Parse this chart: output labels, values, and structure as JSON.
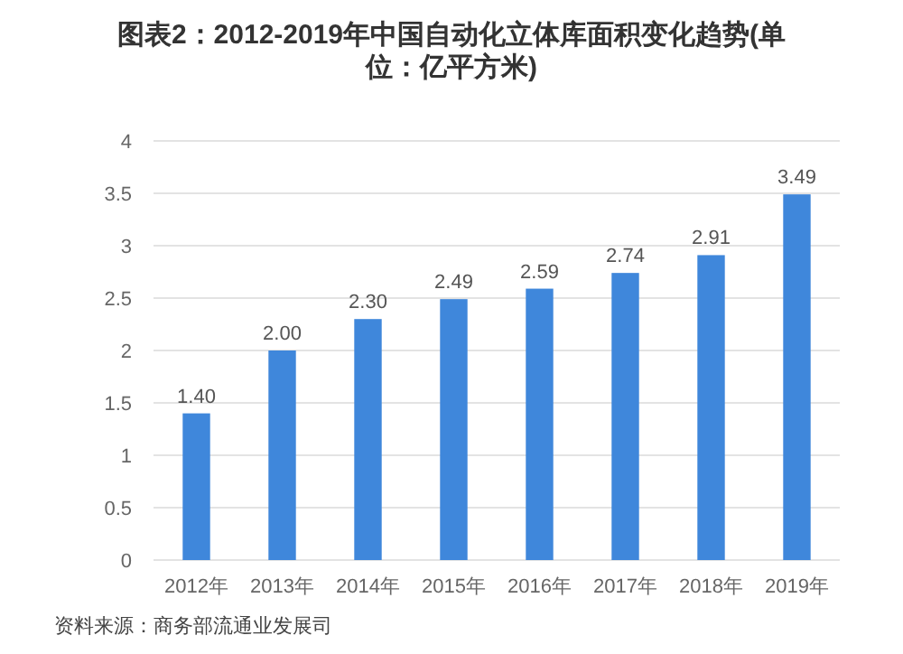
{
  "chart_data": {
    "type": "bar",
    "title": "图表2：2012-2019年中国自动化立体库面积变化趋势(单位：亿平方米)",
    "categories": [
      "2012年",
      "2013年",
      "2014年",
      "2015年",
      "2016年",
      "2017年",
      "2018年",
      "2019年"
    ],
    "values": [
      1.4,
      2.0,
      2.3,
      2.49,
      2.59,
      2.74,
      2.91,
      3.49
    ],
    "value_labels": [
      "1.40",
      "2.00",
      "2.30",
      "2.49",
      "2.59",
      "2.74",
      "2.91",
      "3.49"
    ],
    "color": "#3f87db",
    "ylim": [
      0,
      4
    ],
    "yticks": [
      0,
      0.5,
      1,
      1.5,
      2,
      2.5,
      3,
      3.5,
      4
    ],
    "grid": "y",
    "annotations": [
      "资料来源：商务部流通业发展司"
    ]
  }
}
